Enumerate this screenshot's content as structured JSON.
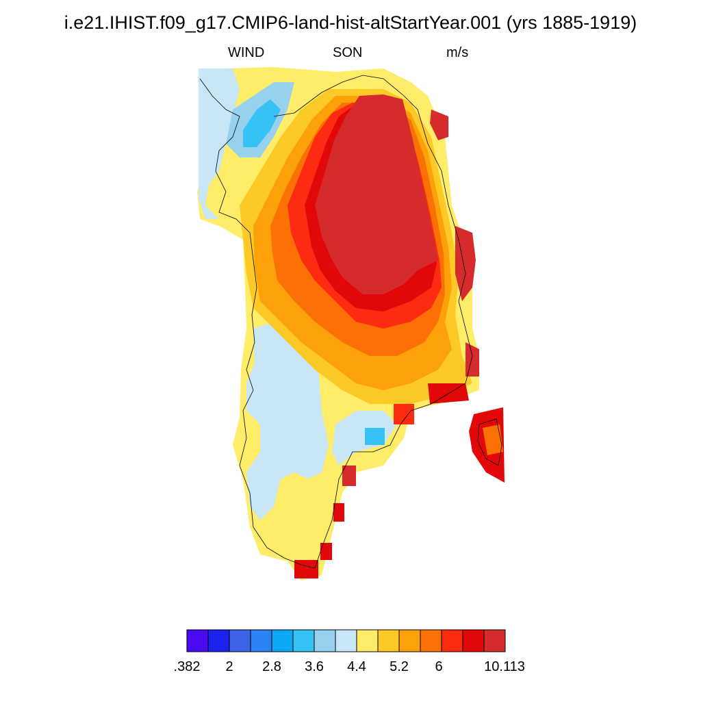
{
  "title": "i.e21.IHIST.f09_g17.CMIP6-land-hist-altStartYear.001 (yrs 1885-1919)",
  "variable": "WIND",
  "season": "SON",
  "units": "m/s",
  "colorbar": {
    "colors": [
      "#4b0bf2",
      "#1a23f0",
      "#3c63e8",
      "#2a84f5",
      "#0ca7f6",
      "#36c2f5",
      "#98d1ee",
      "#c8e6f6",
      "#ffed6a",
      "#fcc927",
      "#fca108",
      "#fc7105",
      "#fc2b11",
      "#e20708",
      "#d52b2c"
    ],
    "labels": [
      ".382",
      "2",
      "2.8",
      "3.6",
      "4.4",
      "5.2",
      "6",
      "10.113"
    ]
  },
  "map_regions": [
    {
      "name": "interior-max",
      "color": "#d52b2c"
    },
    {
      "name": "inner-ring",
      "color": "#e20708"
    },
    {
      "name": "ring-red",
      "color": "#fc2b11"
    },
    {
      "name": "ring-orange",
      "color": "#fc7105"
    },
    {
      "name": "ring-amber",
      "color": "#fca108"
    },
    {
      "name": "ring-gold",
      "color": "#fcc927"
    },
    {
      "name": "ring-yellow",
      "color": "#ffed6a"
    },
    {
      "name": "coastal-light-blue",
      "color": "#c8e6f6"
    },
    {
      "name": "coastal-blue",
      "color": "#98d1ee"
    },
    {
      "name": "coastal-cyan",
      "color": "#36c2f5"
    }
  ]
}
